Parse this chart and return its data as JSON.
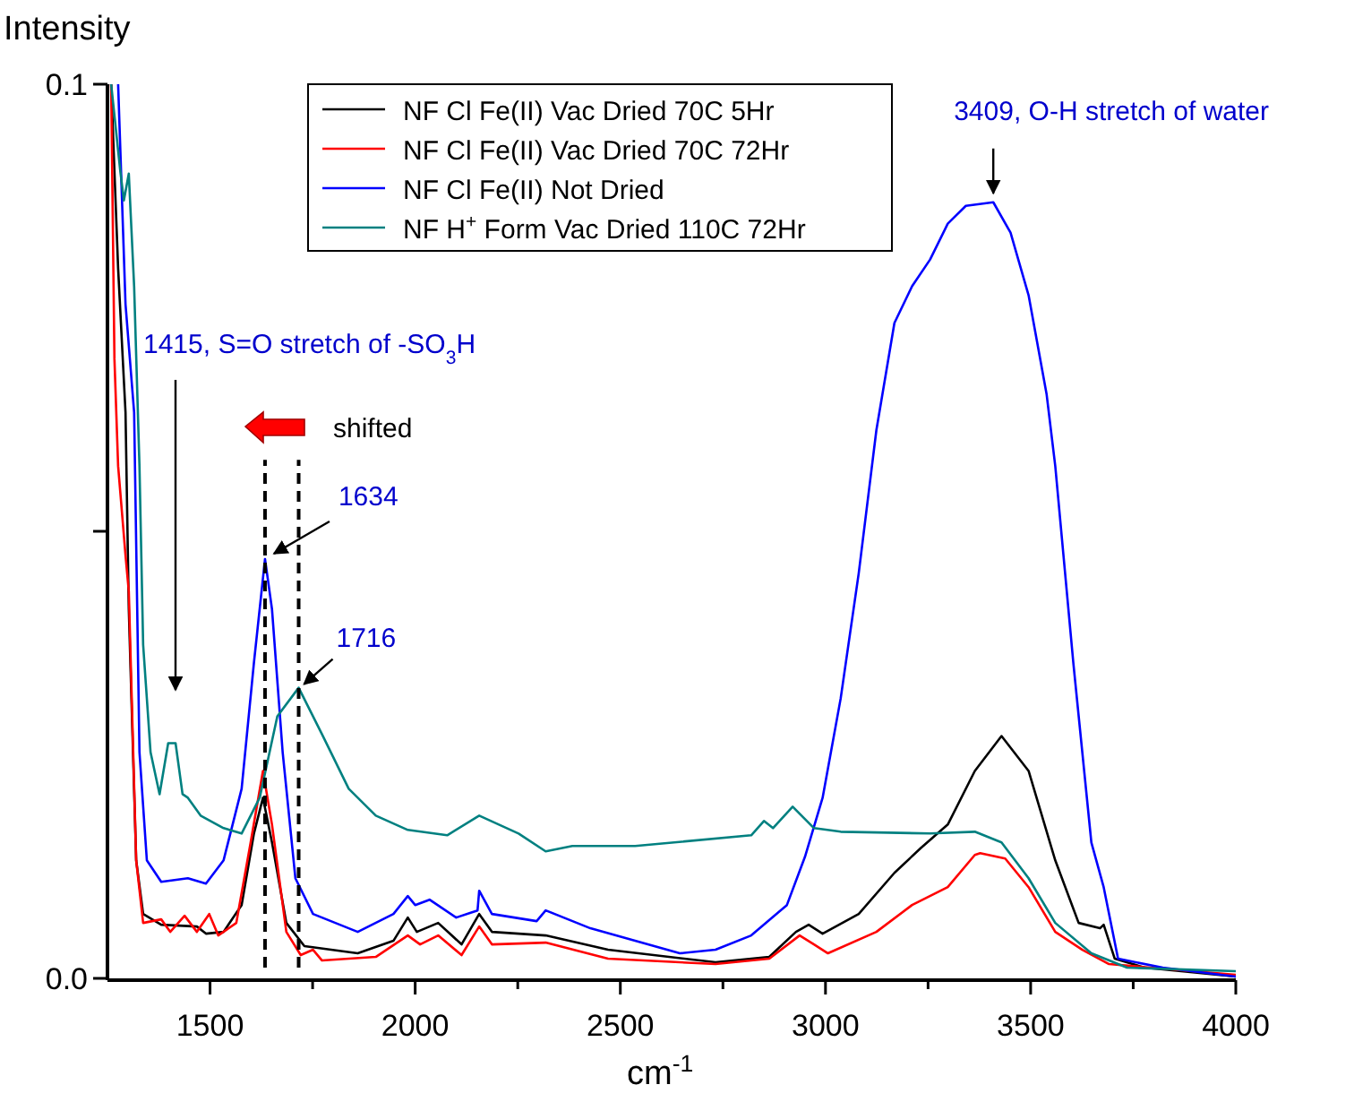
{
  "chart_data": {
    "type": "line",
    "ylabel": "Intensity",
    "xlabel": "cm$^{-1}$",
    "xlim": [
      1250,
      4000
    ],
    "xticks": [
      1500,
      {
        "value": 1750,
        "label": null
      },
      2000,
      {
        "value": 2250,
        "label": null
      },
      2500,
      {
        "value": 2750,
        "label": null
      },
      3000,
      {
        "value": 3250,
        "label": null
      },
      3500,
      {
        "value": 3750,
        "label": null
      },
      4000
    ],
    "ylim": [
      0,
      0.1
    ],
    "yticks": [
      {
        "value": 0,
        "label": "0.0"
      },
      {
        "value": 0.05,
        "label": null
      },
      0.1
    ],
    "grid": false,
    "legend": "top",
    "marker": "none",
    "line_style": "solid",
    "series": [
      {
        "name": "NF Cl Fe(II) Vac Dried 70C 5Hr",
        "color": "#000000",
        "x": [
          1259,
          1276,
          1294,
          1302,
          1320,
          1337,
          1381,
          1468,
          1490,
          1533,
          1577,
          1607,
          1629,
          1651,
          1686,
          1730,
          1860,
          1947,
          1982,
          2004,
          2056,
          2113,
          2156,
          2187,
          2318,
          2470,
          2732,
          2863,
          2928,
          2959,
          2993,
          3081,
          3168,
          3233,
          3298,
          3364,
          3429,
          3495,
          3560,
          3617,
          3669,
          3678,
          3705,
          3778,
          4000
        ],
        "values": [
          0.1,
          0.0794,
          0.0633,
          0.0413,
          0.0132,
          0.0072,
          0.006,
          0.0058,
          0.005,
          0.0052,
          0.0082,
          0.0162,
          0.0202,
          0.0152,
          0.0062,
          0.0036,
          0.0028,
          0.0042,
          0.0068,
          0.0052,
          0.0062,
          0.0038,
          0.0072,
          0.0052,
          0.0048,
          0.0032,
          0.0018,
          0.0024,
          0.0052,
          0.006,
          0.005,
          0.0072,
          0.0118,
          0.0146,
          0.0172,
          0.0232,
          0.0271,
          0.0232,
          0.0132,
          0.0062,
          0.0056,
          0.006,
          0.0022,
          0.0012,
          0.0002
        ]
      },
      {
        "name": "NF Cl Fe(II) Vac Dried 70C 72Hr",
        "color": "#ff0000",
        "x": [
          1259,
          1267,
          1276,
          1294,
          1302,
          1320,
          1337,
          1381,
          1403,
          1438,
          1468,
          1498,
          1520,
          1564,
          1599,
          1629,
          1651,
          1686,
          1721,
          1751,
          1773,
          1904,
          1982,
          2012,
          2056,
          2113,
          2156,
          2187,
          2318,
          2470,
          2732,
          2863,
          2937,
          2972,
          3006,
          3124,
          3211,
          3298,
          3364,
          3377,
          3438,
          3495,
          3560,
          3626,
          3691,
          4000
        ],
        "values": [
          0.1,
          0.0693,
          0.0573,
          0.0473,
          0.0433,
          0.0132,
          0.0062,
          0.0066,
          0.0052,
          0.007,
          0.0052,
          0.0072,
          0.0048,
          0.0062,
          0.0152,
          0.0232,
          0.0172,
          0.0052,
          0.0026,
          0.0032,
          0.002,
          0.0024,
          0.0048,
          0.0038,
          0.0048,
          0.0026,
          0.0058,
          0.0038,
          0.004,
          0.0022,
          0.0016,
          0.0022,
          0.0048,
          0.0038,
          0.0028,
          0.0052,
          0.0082,
          0.0102,
          0.0138,
          0.014,
          0.0134,
          0.0102,
          0.0052,
          0.0032,
          0.0016,
          0.0004
        ]
      },
      {
        "name": "NF Cl Fe(II) Not Dried",
        "color": "#0000ff",
        "x": [
          1276,
          1294,
          1315,
          1328,
          1346,
          1381,
          1446,
          1490,
          1533,
          1577,
          1607,
          1634,
          1651,
          1677,
          1708,
          1751,
          1860,
          1947,
          1982,
          2000,
          2035,
          2100,
          2152,
          2156,
          2187,
          2296,
          2318,
          2427,
          2645,
          2732,
          2819,
          2906,
          2950,
          2993,
          3037,
          3081,
          3124,
          3168,
          3211,
          3255,
          3298,
          3342,
          3409,
          3451,
          3495,
          3539,
          3560,
          3604,
          3648,
          3678,
          3713,
          3822,
          4000
        ],
        "values": [
          0.1,
          0.0754,
          0.0633,
          0.0253,
          0.0132,
          0.0108,
          0.0112,
          0.0106,
          0.0132,
          0.0212,
          0.0353,
          0.0469,
          0.0413,
          0.0253,
          0.0112,
          0.0072,
          0.0052,
          0.0072,
          0.0092,
          0.0082,
          0.0088,
          0.0068,
          0.0076,
          0.0098,
          0.0072,
          0.0064,
          0.0076,
          0.0056,
          0.0028,
          0.0032,
          0.0048,
          0.0082,
          0.0136,
          0.0202,
          0.0313,
          0.0453,
          0.0613,
          0.0733,
          0.0774,
          0.0804,
          0.0844,
          0.0864,
          0.0868,
          0.0834,
          0.0764,
          0.0653,
          0.0573,
          0.0353,
          0.0152,
          0.0102,
          0.0022,
          0.0012,
          0.0002
        ]
      },
      {
        "name": "NF H$^{+}$ Form Vac Dried 110C 72Hr",
        "color": "#008080",
        "x": [
          1259,
          1281,
          1290,
          1302,
          1315,
          1328,
          1337,
          1355,
          1377,
          1398,
          1416,
          1433,
          1446,
          1477,
          1533,
          1577,
          1621,
          1664,
          1716,
          1773,
          1838,
          1904,
          1982,
          2078,
          2156,
          2252,
          2318,
          2383,
          2536,
          2819,
          2850,
          2872,
          2920,
          2972,
          3037,
          3255,
          3364,
          3429,
          3495,
          3560,
          3648,
          3735,
          4000
        ],
        "values": [
          0.1,
          0.0904,
          0.087,
          0.09,
          0.0774,
          0.0573,
          0.0373,
          0.0253,
          0.0206,
          0.0263,
          0.0263,
          0.0206,
          0.0202,
          0.0182,
          0.0168,
          0.0162,
          0.0202,
          0.0293,
          0.0325,
          0.0273,
          0.0212,
          0.0182,
          0.0166,
          0.016,
          0.0182,
          0.0162,
          0.0142,
          0.0148,
          0.0148,
          0.016,
          0.0176,
          0.0168,
          0.0192,
          0.0168,
          0.0164,
          0.0162,
          0.0164,
          0.0152,
          0.0112,
          0.0062,
          0.0028,
          0.0012,
          0.0008
        ]
      }
    ],
    "ref_lines": [
      {
        "axis": "x",
        "value": 1634,
        "color": "#000000",
        "line_style": "dashed"
      },
      {
        "axis": "x",
        "value": 1716,
        "color": "#000000",
        "line_style": "dashed"
      }
    ],
    "annotations": [
      "1415, S=O stretch of -SO$_{3}$H",
      {
        "text": "1634",
        "x": 1634,
        "y": 0.0469
      },
      {
        "text": "1716",
        "x": 1716,
        "y": 0.0325
      },
      {
        "text": "3409, O-H stretch of water",
        "x": 3409,
        "y": 0.0868
      },
      "shifted"
    ]
  }
}
